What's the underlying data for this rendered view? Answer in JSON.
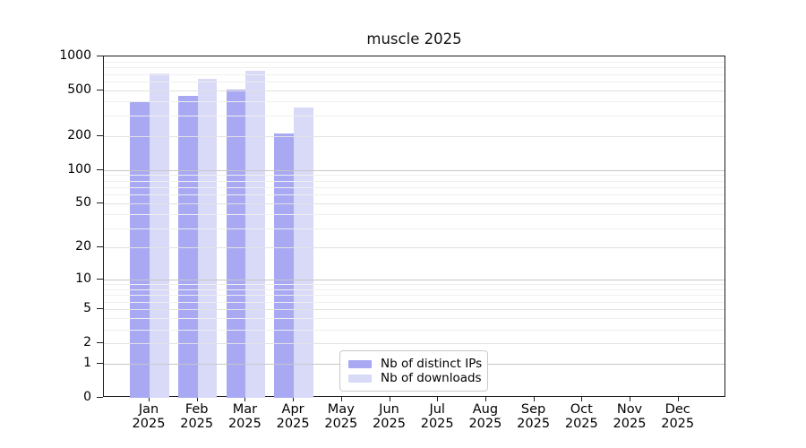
{
  "chart_data": {
    "type": "bar",
    "title": "muscle 2025",
    "scale": "log1p",
    "xlabel": "",
    "ylabel": "",
    "ylim": [
      0,
      1000
    ],
    "grid": true,
    "legend_position": "lower center inside plot",
    "categories": [
      "Jan",
      "Feb",
      "Mar",
      "Apr",
      "May",
      "Jun",
      "Jul",
      "Aug",
      "Sep",
      "Oct",
      "Nov",
      "Dec"
    ],
    "category_year": "2025",
    "yticks": [
      1000,
      500,
      200,
      100,
      50,
      20,
      10,
      5,
      2,
      1,
      0
    ],
    "minor_ticks": [
      3,
      4,
      6,
      7,
      8,
      9,
      30,
      40,
      60,
      70,
      80,
      90,
      300,
      400,
      600,
      700,
      800,
      900
    ],
    "series": [
      {
        "name": "Nb of distinct IPs",
        "color": "#a8a8f3",
        "values": [
          405,
          447,
          514,
          210,
          null,
          null,
          null,
          null,
          null,
          null,
          null,
          null
        ]
      },
      {
        "name": "Nb of downloads",
        "color": "#d9d9f8",
        "values": [
          712,
          637,
          751,
          353,
          null,
          null,
          null,
          null,
          null,
          null,
          null,
          null
        ]
      }
    ]
  }
}
